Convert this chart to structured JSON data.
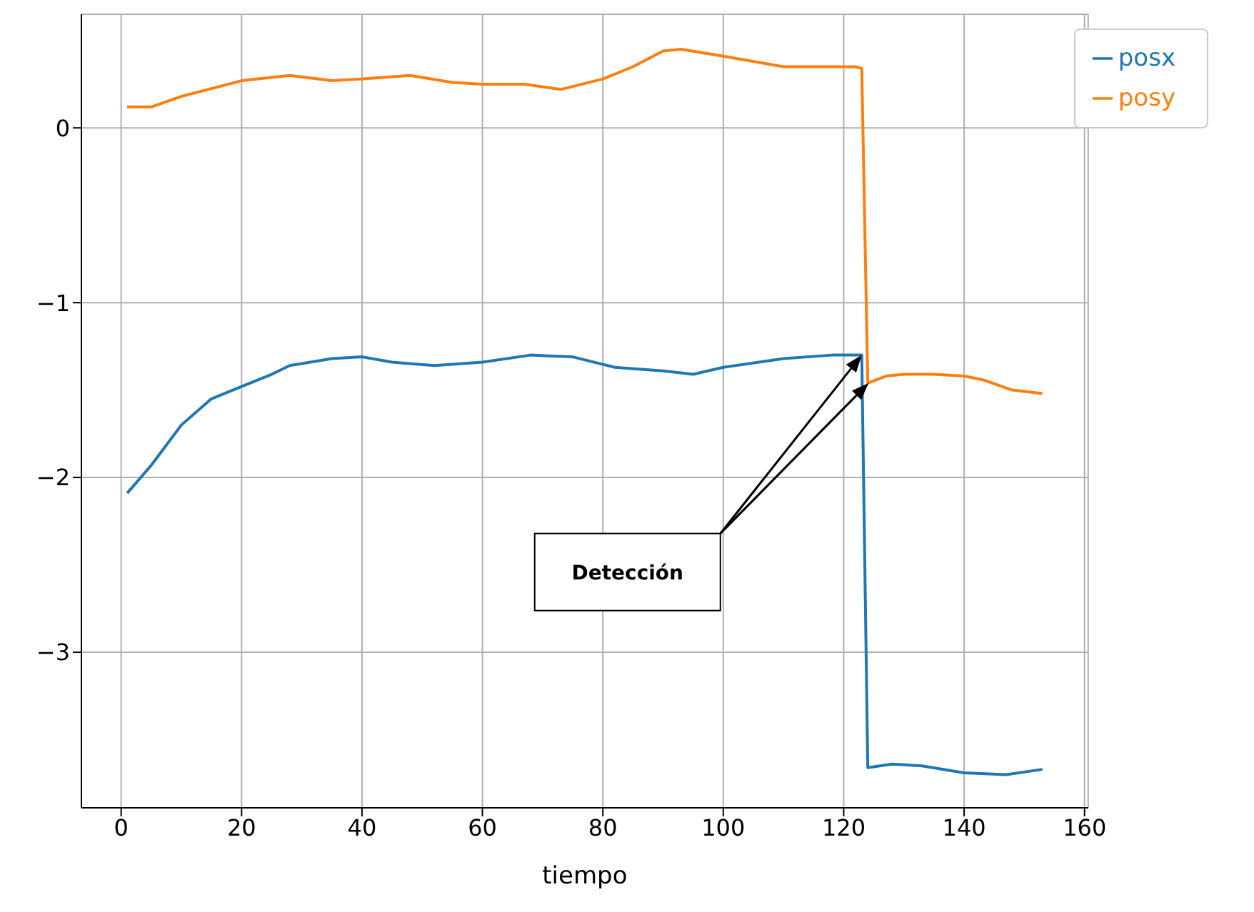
{
  "chart_data": {
    "type": "line",
    "xlabel": "tiempo",
    "xlim": [
      -6.6,
      160.6
    ],
    "xticks": [
      0,
      20,
      40,
      60,
      80,
      100,
      120,
      140,
      160
    ],
    "ylim": [
      -3.89,
      0.65
    ],
    "yticks": [
      {
        "value": -3,
        "label": "−3"
      },
      {
        "value": -2,
        "label": "−2"
      },
      {
        "value": -1,
        "label": "−1"
      },
      0
    ],
    "grid": true,
    "legend": "top right",
    "line_style": "solid",
    "marker": "none",
    "series": [
      {
        "name": "posx",
        "color": "#1f77b4",
        "x": [
          1,
          5,
          10,
          15,
          20,
          25,
          28,
          35,
          40,
          45,
          52,
          60,
          68,
          75,
          82,
          90,
          95,
          100,
          110,
          118,
          123,
          124,
          128,
          133,
          140,
          147,
          153
        ],
        "values": [
          -2.09,
          -1.93,
          -1.7,
          -1.55,
          -1.48,
          -1.41,
          -1.36,
          -1.32,
          -1.31,
          -1.34,
          -1.36,
          -1.34,
          -1.3,
          -1.31,
          -1.37,
          -1.39,
          -1.41,
          -1.37,
          -1.32,
          -1.3,
          -1.3,
          -3.66,
          -3.64,
          -3.65,
          -3.69,
          -3.7,
          -3.67
        ]
      },
      {
        "name": "posy",
        "color": "#ff7f0e",
        "x": [
          1,
          5,
          10,
          20,
          28,
          35,
          40,
          48,
          55,
          60,
          67,
          73,
          80,
          85,
          90,
          93,
          100,
          110,
          118,
          122,
          123,
          124,
          127,
          130,
          135,
          140,
          143,
          148,
          153
        ],
        "values": [
          0.12,
          0.12,
          0.18,
          0.27,
          0.3,
          0.27,
          0.28,
          0.3,
          0.26,
          0.25,
          0.25,
          0.22,
          0.28,
          0.35,
          0.44,
          0.45,
          0.41,
          0.35,
          0.35,
          0.35,
          0.34,
          -1.46,
          -1.42,
          -1.41,
          -1.41,
          -1.42,
          -1.44,
          -1.5,
          -1.52
        ]
      }
    ],
    "annotations": [
      "Detección"
    ]
  }
}
